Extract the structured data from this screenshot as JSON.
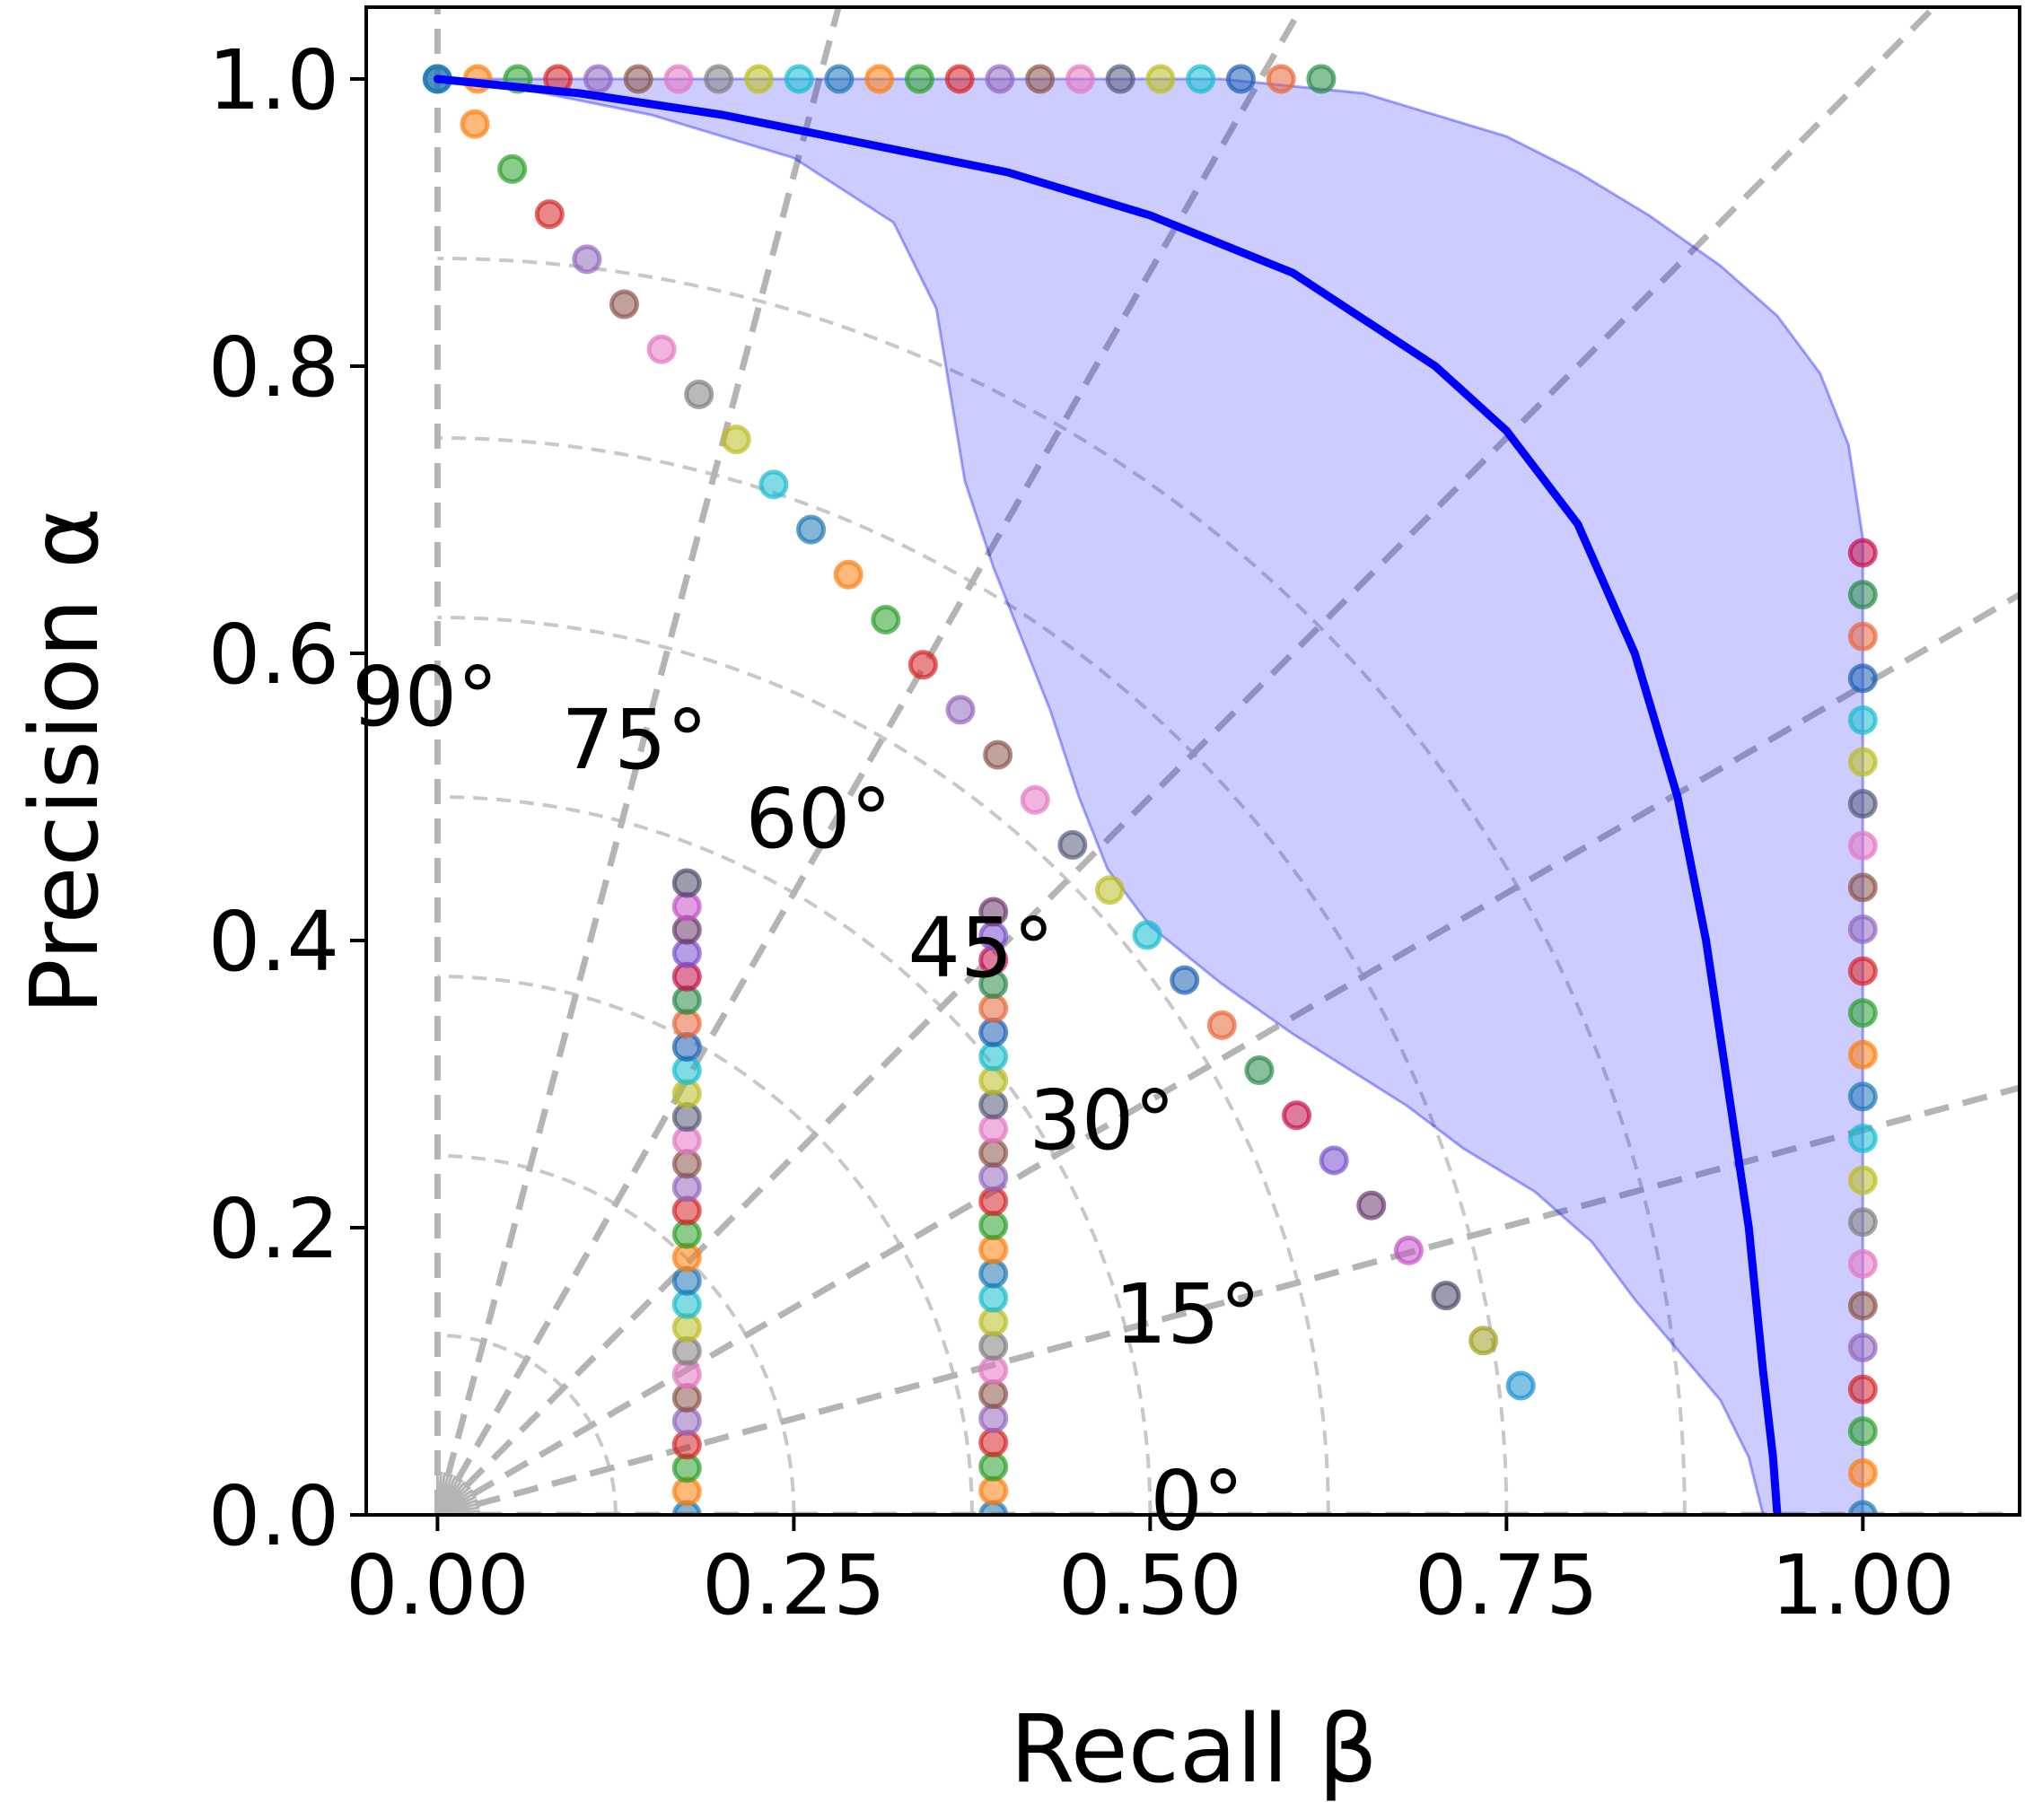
{
  "chart_data": {
    "type": "scatter",
    "xlabel": "Recall β",
    "ylabel": "Precision α",
    "xlim": [
      -0.05,
      1.11
    ],
    "ylim": [
      0.0,
      1.05
    ],
    "xticks": [
      {
        "v": 0.0,
        "label": "0.00"
      },
      {
        "v": 0.25,
        "label": "0.25"
      },
      {
        "v": 0.5,
        "label": "0.50"
      },
      {
        "v": 0.75,
        "label": "0.75"
      },
      {
        "v": 1.0,
        "label": "1.00"
      }
    ],
    "yticks": [
      {
        "v": 0.0,
        "label": "0.0"
      },
      {
        "v": 0.2,
        "label": "0.2"
      },
      {
        "v": 0.4,
        "label": "0.4"
      },
      {
        "v": 0.6,
        "label": "0.6"
      },
      {
        "v": 0.8,
        "label": "0.8"
      },
      {
        "v": 1.0,
        "label": "1.0"
      }
    ],
    "polar_grid": {
      "radii": [
        0.125,
        0.25,
        0.375,
        0.5,
        0.625,
        0.75,
        0.875
      ],
      "rays_deg": [
        0,
        15,
        30,
        45,
        60,
        75,
        90
      ],
      "ray_labels": [
        {
          "deg": 90,
          "label": "90°",
          "x": -0.06,
          "y": 0.55
        },
        {
          "deg": 75,
          "label": "75°",
          "x": 0.087,
          "y": 0.52
        },
        {
          "deg": 60,
          "label": "60°",
          "x": 0.216,
          "y": 0.465
        },
        {
          "deg": 45,
          "label": "45°",
          "x": 0.33,
          "y": 0.375
        },
        {
          "deg": 30,
          "label": "30°",
          "x": 0.415,
          "y": 0.255
        },
        {
          "deg": 15,
          "label": "15°",
          "x": 0.475,
          "y": 0.12
        },
        {
          "deg": 0,
          "label": "0°",
          "x": 0.5,
          "y": -0.01
        }
      ]
    },
    "curve": {
      "color": "#0000ff",
      "x": [
        0.0,
        0.1,
        0.2,
        0.3,
        0.4,
        0.5,
        0.6,
        0.7,
        0.75,
        0.8,
        0.84,
        0.87,
        0.89,
        0.905,
        0.92,
        0.93,
        0.937,
        0.94
      ],
      "y": [
        1.0,
        0.99,
        0.975,
        0.955,
        0.935,
        0.905,
        0.865,
        0.8,
        0.755,
        0.69,
        0.6,
        0.5,
        0.4,
        0.3,
        0.2,
        0.1,
        0.04,
        0.0
      ]
    },
    "band": {
      "color": "#0000ff",
      "opacity": 0.2,
      "outer": [
        [
          0.0,
          1.0
        ],
        [
          0.1,
          1.0
        ],
        [
          0.2,
          1.0
        ],
        [
          0.3,
          1.0
        ],
        [
          0.4,
          1.0
        ],
        [
          0.5,
          1.0
        ],
        [
          0.55,
          1.0
        ],
        [
          0.6,
          0.995
        ],
        [
          0.65,
          0.99
        ],
        [
          0.7,
          0.975
        ],
        [
          0.75,
          0.96
        ],
        [
          0.8,
          0.935
        ],
        [
          0.85,
          0.905
        ],
        [
          0.9,
          0.87
        ],
        [
          0.94,
          0.835
        ],
        [
          0.97,
          0.795
        ],
        [
          0.99,
          0.745
        ],
        [
          1.0,
          0.68
        ],
        [
          1.0,
          0.0
        ]
      ],
      "inner": [
        [
          0.93,
          0.0
        ],
        [
          0.92,
          0.04
        ],
        [
          0.9,
          0.08
        ],
        [
          0.87,
          0.115
        ],
        [
          0.84,
          0.15
        ],
        [
          0.81,
          0.19
        ],
        [
          0.77,
          0.225
        ],
        [
          0.72,
          0.255
        ],
        [
          0.68,
          0.285
        ],
        [
          0.64,
          0.31
        ],
        [
          0.6,
          0.335
        ],
        [
          0.55,
          0.37
        ],
        [
          0.5,
          0.41
        ],
        [
          0.47,
          0.45
        ],
        [
          0.45,
          0.5
        ],
        [
          0.43,
          0.56
        ],
        [
          0.41,
          0.61
        ],
        [
          0.39,
          0.66
        ],
        [
          0.37,
          0.72
        ],
        [
          0.36,
          0.78
        ],
        [
          0.35,
          0.84
        ],
        [
          0.32,
          0.9
        ],
        [
          0.25,
          0.945
        ],
        [
          0.15,
          0.975
        ],
        [
          0.05,
          0.995
        ],
        [
          0.0,
          1.0
        ]
      ]
    },
    "point_color_cycle": [
      "#1f77b4",
      "#ff7f0e",
      "#2ca02c",
      "#d62728",
      "#9467bd",
      "#8c564b",
      "#e377c2",
      "#7f7f7f",
      "#bcbd22",
      "#17becf",
      "#1f77b4",
      "#ff7f0e",
      "#2ca02c",
      "#d62728",
      "#9467bd",
      "#8c564b",
      "#e377c2",
      "#555b7a",
      "#bcbd22",
      "#17becf",
      "#1f60b4",
      "#e8663a",
      "#2a8a4a",
      "#c4104a",
      "#7a4fcf",
      "#6b3a6b",
      "#c450c8",
      "#4a4a6a",
      "#a0a020",
      "#1790cf"
    ],
    "point_groups": [
      {
        "name": "vertical-0.175",
        "x": 0.175,
        "y_from": 0.0,
        "y_to": 0.44,
        "n": 28
      },
      {
        "name": "vertical-0.39",
        "x": 0.39,
        "y_from": 0.0,
        "y_to": 0.42,
        "n": 26
      },
      {
        "name": "diagonal-family",
        "x_from": 0.0,
        "y_from": 1.0,
        "x_to": 0.76,
        "y_to": 0.09,
        "n": 30
      },
      {
        "name": "top-row",
        "y": 1.0,
        "x_from": 0.0,
        "x_to": 0.62,
        "n": 23
      },
      {
        "name": "right-column",
        "x": 1.0,
        "y_from": 0.0,
        "y_to": 0.67,
        "n": 24
      }
    ]
  }
}
